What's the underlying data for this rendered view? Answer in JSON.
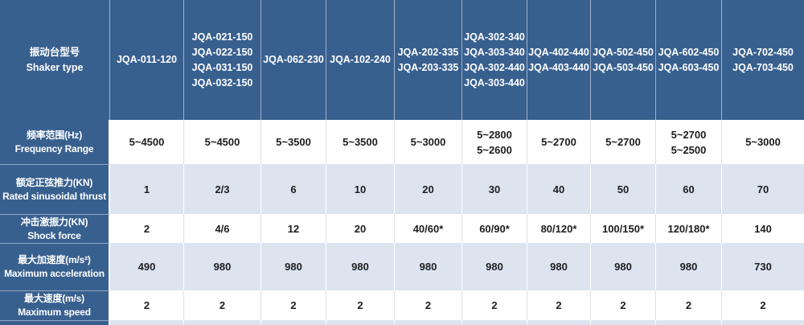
{
  "colors": {
    "header_bg": "#38608F",
    "label_bg": "#38608F",
    "row_white_bg": "#FFFFFF",
    "row_blue_bg": "#DCE4F0",
    "header_text": "#FFFFFF",
    "data_text": "#1D1D1D",
    "outer_border": "#B9C4D4"
  },
  "table": {
    "header": {
      "label": "振动台型号\nShaker type",
      "columns": [
        "JQA-011-120",
        "JQA-021-150\nJQA-022-150\nJQA-031-150\nJQA-032-150",
        "JQA-062-230",
        "JQA-102-240",
        "JQA-202-335\nJQA-203-335",
        "JQA-302-340\nJQA-303-340\nJQA-302-440\nJQA-303-440",
        "JQA-402-440\nJQA-403-440",
        "JQA-502-450\nJQA-503-450",
        "JQA-602-450\nJQA-603-450",
        "JQA-702-450\nJQA-703-450"
      ]
    },
    "rows": [
      {
        "label": "频率范围(Hz)\nFrequency Range",
        "values": [
          "5~4500",
          "5~4500",
          "5~3500",
          "5~3500",
          "5~3000",
          "5~2800\n5~2600",
          "5~2700",
          "5~2700",
          "5~2700\n5~2500",
          "5~3000"
        ]
      },
      {
        "label": "额定正弦推力(KN)\nRated sinusoidal thrust",
        "values": [
          "1",
          "2/3",
          "6",
          "10",
          "20",
          "30",
          "40",
          "50",
          "60",
          "70"
        ]
      },
      {
        "label": "冲击激振力(KN)\nShock force",
        "values": [
          "2",
          "4/6",
          "12",
          "20",
          "40/60*",
          "60/90*",
          "80/120*",
          "100/150*",
          "120/180*",
          "140"
        ]
      },
      {
        "label": "最大加速度(m/s²)\nMaximum acceleration",
        "values": [
          "490",
          "980",
          "980",
          "980",
          "980",
          "980",
          "980",
          "980",
          "980",
          "730"
        ]
      },
      {
        "label": "最大速度(m/s)\nMaximum speed",
        "values": [
          "2",
          "2",
          "2",
          "2",
          "2",
          "2",
          "2",
          "2",
          "2",
          "2"
        ]
      }
    ]
  },
  "chart_data": {
    "type": "table",
    "columns": [
      "振动台型号 Shaker type",
      "JQA-011-120",
      "JQA-021-150 / JQA-022-150 / JQA-031-150 / JQA-032-150",
      "JQA-062-230",
      "JQA-102-240",
      "JQA-202-335 / JQA-203-335",
      "JQA-302-340 / JQA-303-340 / JQA-302-440 / JQA-303-440",
      "JQA-402-440 / JQA-403-440",
      "JQA-502-450 / JQA-503-450",
      "JQA-602-450 / JQA-603-450",
      "JQA-702-450 / JQA-703-450"
    ],
    "rows": [
      [
        "频率范围(Hz) Frequency Range",
        "5~4500",
        "5~4500",
        "5~3500",
        "5~3500",
        "5~3000",
        "5~2800 / 5~2600",
        "5~2700",
        "5~2700",
        "5~2700 / 5~2500",
        "5~3000"
      ],
      [
        "额定正弦推力(KN) Rated sinusoidal thrust",
        "1",
        "2/3",
        "6",
        "10",
        "20",
        "30",
        "40",
        "50",
        "60",
        "70"
      ],
      [
        "冲击激振力(KN) Shock force",
        "2",
        "4/6",
        "12",
        "20",
        "40/60*",
        "60/90*",
        "80/120*",
        "100/150*",
        "120/180*",
        "140"
      ],
      [
        "最大加速度(m/s²) Maximum acceleration",
        "490",
        "980",
        "980",
        "980",
        "980",
        "980",
        "980",
        "980",
        "980",
        "730"
      ],
      [
        "最大速度(m/s) Maximum speed",
        "2",
        "2",
        "2",
        "2",
        "2",
        "2",
        "2",
        "2",
        "2",
        "2"
      ]
    ]
  }
}
